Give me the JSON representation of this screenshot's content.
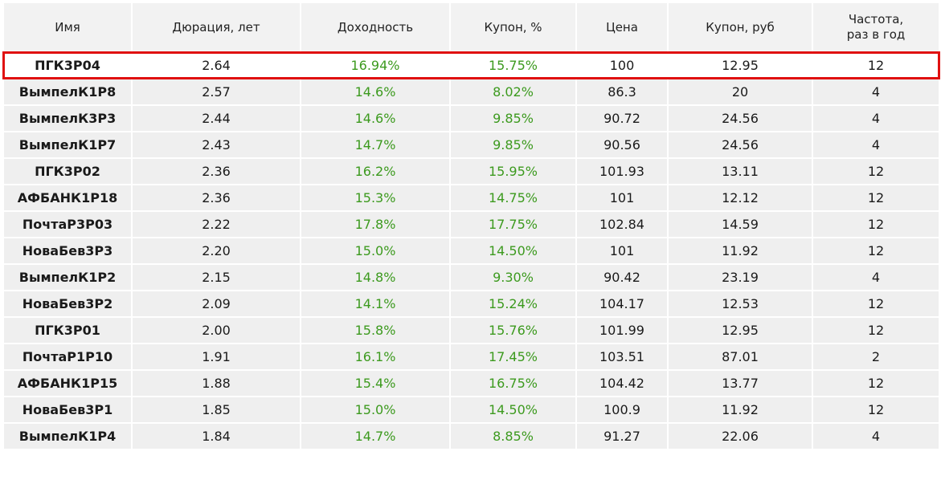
{
  "table": {
    "headers": [
      "Имя",
      "Дюрация, лет",
      "Доходность",
      "Купон, %",
      "Цена",
      "Купон, руб",
      "Частота,\nраз в год"
    ],
    "rows": [
      [
        "ПГК3Р04",
        "2.64",
        "16.94%",
        "15.75%",
        "100",
        "12.95",
        "12"
      ],
      [
        "ВымпелК1Р8",
        "2.57",
        "14.6%",
        "8.02%",
        "86.3",
        "20",
        "4"
      ],
      [
        "ВымпелК3Р3",
        "2.44",
        "14.6%",
        "9.85%",
        "90.72",
        "24.56",
        "4"
      ],
      [
        "ВымпелК1Р7",
        "2.43",
        "14.7%",
        "9.85%",
        "90.56",
        "24.56",
        "4"
      ],
      [
        "ПГК3Р02",
        "2.36",
        "16.2%",
        "15.95%",
        "101.93",
        "13.11",
        "12"
      ],
      [
        "АФБАНК1Р18",
        "2.36",
        "15.3%",
        "14.75%",
        "101",
        "12.12",
        "12"
      ],
      [
        "ПочтаР3Р03",
        "2.22",
        "17.8%",
        "17.75%",
        "102.84",
        "14.59",
        "12"
      ],
      [
        "НоваБев3Р3",
        "2.20",
        "15.0%",
        "14.50%",
        "101",
        "11.92",
        "12"
      ],
      [
        "ВымпелК1Р2",
        "2.15",
        "14.8%",
        "9.30%",
        "90.42",
        "23.19",
        "4"
      ],
      [
        "НоваБев3Р2",
        "2.09",
        "14.1%",
        "15.24%",
        "104.17",
        "12.53",
        "12"
      ],
      [
        "ПГК3Р01",
        "2.00",
        "15.8%",
        "15.76%",
        "101.99",
        "12.95",
        "12"
      ],
      [
        "ПочтаР1Р10",
        "1.91",
        "16.1%",
        "17.45%",
        "103.51",
        "87.01",
        "2"
      ],
      [
        "АФБАНК1Р15",
        "1.88",
        "15.4%",
        "16.75%",
        "104.42",
        "13.77",
        "12"
      ],
      [
        "НоваБев3Р1",
        "1.85",
        "15.0%",
        "14.50%",
        "100.9",
        "11.92",
        "12"
      ],
      [
        "ВымпелК1Р4",
        "1.84",
        "14.7%",
        "8.85%",
        "91.27",
        "22.06",
        "4"
      ]
    ]
  }
}
